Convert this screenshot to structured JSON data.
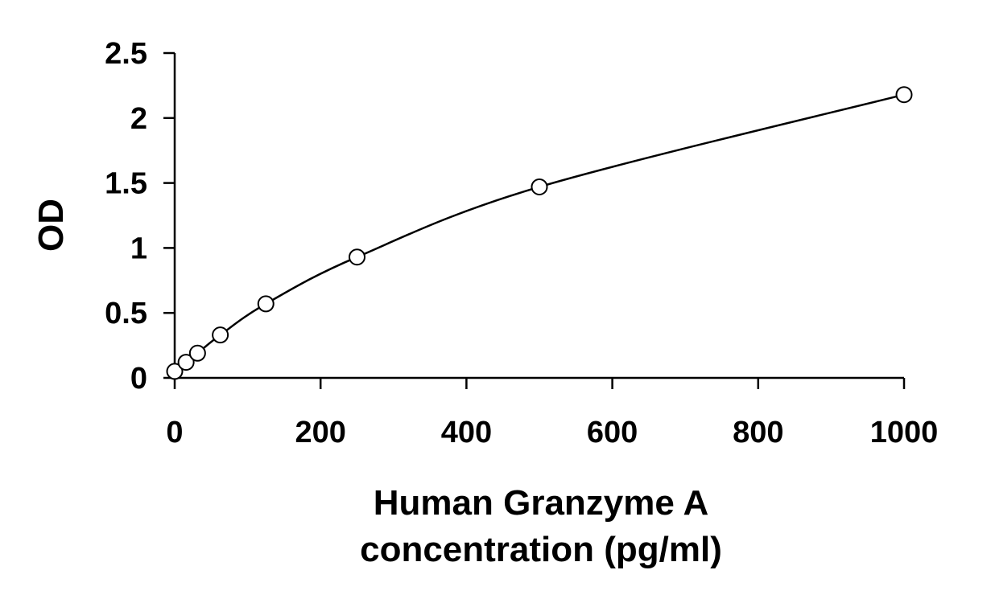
{
  "chart_data": {
    "type": "scatter",
    "title": "",
    "xlabel": [
      "Human Granzyme A",
      "concentration (pg/ml)"
    ],
    "ylabel": "OD",
    "xlim": [
      0,
      1000
    ],
    "ylim": [
      0,
      2.5
    ],
    "x_ticks": [
      0,
      200,
      400,
      600,
      800,
      1000
    ],
    "x_tick_labels": [
      "0",
      "200",
      "400",
      "600",
      "800",
      "1000"
    ],
    "y_ticks": [
      0,
      0.5,
      1,
      1.5,
      2,
      2.5
    ],
    "y_tick_labels": [
      "0",
      "0.5",
      "1",
      "1.5",
      "2",
      "2.5"
    ],
    "grid": false,
    "legend": "none",
    "series": [
      {
        "marker": "open-circle",
        "fit_line": "smooth",
        "x": [
          0,
          15.6,
          31.3,
          62.5,
          125,
          250,
          500,
          1000
        ],
        "y": [
          0.05,
          0.12,
          0.19,
          0.33,
          0.57,
          0.93,
          1.47,
          2.18
        ]
      }
    ],
    "colors": {
      "marker": "#000000",
      "line": "#000000",
      "axis": "#000000"
    }
  }
}
